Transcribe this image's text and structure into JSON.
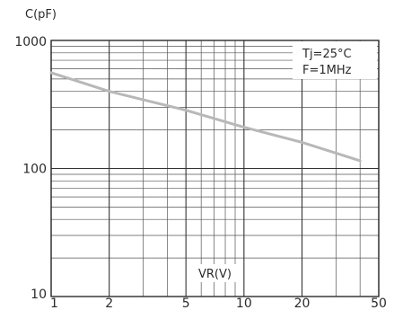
{
  "chart_data": {
    "type": "line",
    "ylabel": "C(pF)",
    "xlabel": "VR(V)",
    "x_scale": "log",
    "y_scale": "log",
    "xlim": [
      1,
      50
    ],
    "ylim": [
      10,
      1000
    ],
    "x_ticks": [
      {
        "value": 1,
        "label": "1"
      },
      {
        "value": 2,
        "label": "2"
      },
      {
        "value": 5,
        "label": "5"
      },
      {
        "value": 10,
        "label": "10"
      },
      {
        "value": 20,
        "label": "20"
      },
      {
        "value": 50,
        "label": "50"
      }
    ],
    "y_ticks": [
      {
        "value": 10,
        "label": "10"
      },
      {
        "value": 100,
        "label": "100"
      },
      {
        "value": 1000,
        "label": "1000"
      }
    ],
    "annotations": [
      "Tj=25°C",
      "F=1MHz"
    ],
    "grid": true,
    "series": [
      {
        "color": "#b8b8b8",
        "points": [
          {
            "x": 1,
            "y": 560
          },
          {
            "x": 2,
            "y": 400
          },
          {
            "x": 5,
            "y": 285
          },
          {
            "x": 10,
            "y": 210
          },
          {
            "x": 20,
            "y": 160
          },
          {
            "x": 40,
            "y": 115
          }
        ]
      }
    ]
  }
}
